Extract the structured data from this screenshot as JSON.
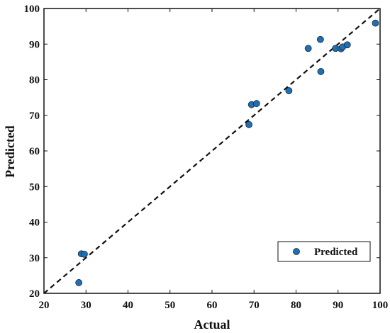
{
  "chart_data": {
    "type": "scatter",
    "title": "",
    "xlabel": "Actual",
    "ylabel": "Predicted",
    "xlim": [
      20,
      100
    ],
    "ylim": [
      20,
      100
    ],
    "xticks": [
      20,
      30,
      40,
      50,
      60,
      70,
      80,
      90,
      100
    ],
    "yticks": [
      20,
      30,
      40,
      50,
      60,
      70,
      80,
      90,
      100
    ],
    "grid": false,
    "legend_position": "bottom-right",
    "marker_color": "#1f6fb2",
    "marker_edge_color": "#1a2a3a",
    "reference_line": {
      "style": "dashed",
      "color": "#111111",
      "from": [
        20,
        20
      ],
      "to": [
        100,
        100
      ]
    },
    "series": [
      {
        "name": "Predicted",
        "points": [
          {
            "x": 28.3,
            "y": 23.0
          },
          {
            "x": 28.9,
            "y": 31.1
          },
          {
            "x": 29.6,
            "y": 31.0
          },
          {
            "x": 68.8,
            "y": 67.4
          },
          {
            "x": 69.4,
            "y": 73.0
          },
          {
            "x": 70.6,
            "y": 73.3
          },
          {
            "x": 78.3,
            "y": 76.9
          },
          {
            "x": 82.9,
            "y": 88.8
          },
          {
            "x": 85.8,
            "y": 91.3
          },
          {
            "x": 85.9,
            "y": 82.3
          },
          {
            "x": 89.4,
            "y": 88.8
          },
          {
            "x": 90.7,
            "y": 88.7
          },
          {
            "x": 91.1,
            "y": 89.2
          },
          {
            "x": 92.2,
            "y": 89.8
          },
          {
            "x": 98.9,
            "y": 95.9
          }
        ]
      }
    ]
  }
}
